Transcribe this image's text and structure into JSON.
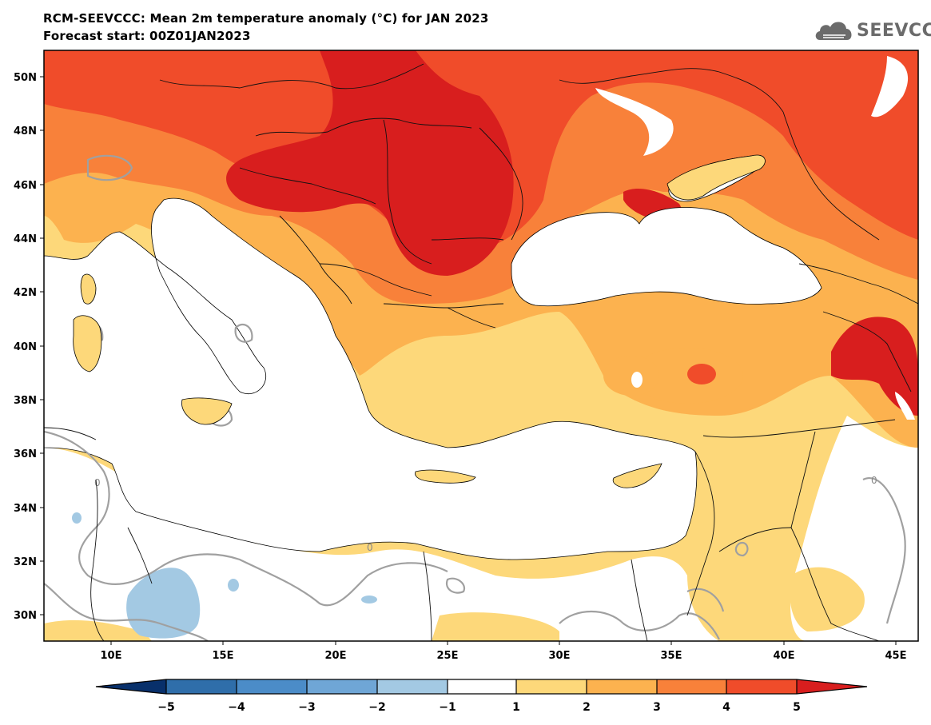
{
  "header": {
    "title": "RCM-SEEVCCC: Mean 2m temperature anomaly (°C) for JAN 2023",
    "subtitle": "Forecast start: 00Z01JAN2023"
  },
  "logo": {
    "text": "SEEVCCC",
    "icon": "cloud-icon"
  },
  "map": {
    "lon_ticks": [
      "10E",
      "15E",
      "20E",
      "25E",
      "30E",
      "35E",
      "40E",
      "45E"
    ],
    "lat_ticks": [
      "50N",
      "48N",
      "46N",
      "44N",
      "42N",
      "40N",
      "38N",
      "36N",
      "34N",
      "32N",
      "30N"
    ],
    "lon_range": [
      7,
      46
    ],
    "lat_range": [
      29,
      51
    ],
    "contour_label": "0"
  },
  "colorbar": {
    "ticks": [
      "−5",
      "−4",
      "−3",
      "−2",
      "−1",
      "1",
      "2",
      "3",
      "4",
      "5"
    ],
    "colors": [
      "#08306b",
      "#2f6eaa",
      "#4b8cc8",
      "#6fa6d6",
      "#a3c9e3",
      "#ffffff",
      "#fdd87a",
      "#fcb24f",
      "#f8813a",
      "#f04c2a",
      "#d81e1e"
    ]
  },
  "chart_data": {
    "type": "heatmap",
    "title": "RCM-SEEVCCC: Mean 2m temperature anomaly (°C) for JAN 2023",
    "subtitle": "Forecast start: 00Z01JAN2023",
    "units": "°C",
    "x_axis": "longitude",
    "y_axis": "latitude",
    "xlim": [
      7,
      46
    ],
    "ylim": [
      29,
      51
    ],
    "levels": [
      -5,
      -4,
      -3,
      -2,
      -1,
      1,
      2,
      3,
      4,
      5
    ]
  }
}
